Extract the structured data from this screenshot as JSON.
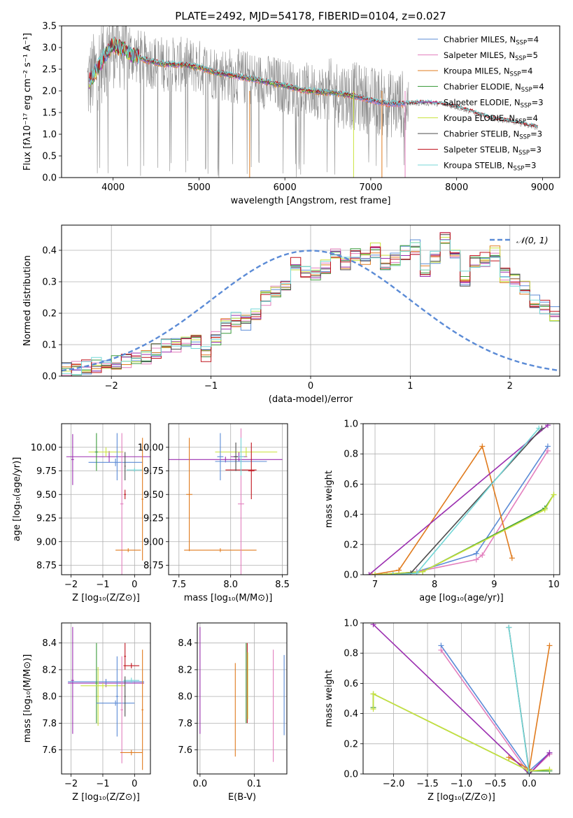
{
  "colors": {
    "chabrier_miles": "#5b8bd6",
    "salpeter_miles": "#e37fbe",
    "kroupa_miles": "#e07b1e",
    "chabrier_elodie": "#3c9b3c",
    "salpeter_elodie": "#9b2fb0",
    "kroupa_elodie": "#c9e23d",
    "chabrier_stelib": "#4d4d4d",
    "salpeter_stelib": "#c0141e",
    "kroupa_stelib": "#74d7d7",
    "observed": "#8c8c8c",
    "normal": "#5b8bd6"
  },
  "chart_data": [
    {
      "id": "spectrum",
      "type": "line",
      "title": "PLATE=2492, MJD=54178, FIBERID=0104, z=0.027",
      "xlabel": "wavelength [Angstrom, rest frame]",
      "ylabel": "Flux [fλ10⁻¹⁷ erg cm⁻² s⁻¹ A⁻¹]",
      "xlim": [
        3400,
        9200
      ],
      "ylim": [
        0,
        3.5
      ],
      "xticks": [
        4000,
        5000,
        6000,
        7000,
        8000,
        9000
      ],
      "yticks": [
        0.0,
        0.5,
        1.0,
        1.5,
        2.0,
        2.5,
        3.0,
        3.5
      ],
      "legend_position": "top-right",
      "legend": [
        {
          "label": "Chabrier MILES, N",
          "sub": "SSP",
          "suffix": "=4",
          "color_key": "chabrier_miles"
        },
        {
          "label": "Salpeter MILES, N",
          "sub": "SSP",
          "suffix": "=5",
          "color_key": "salpeter_miles"
        },
        {
          "label": "Kroupa MILES, N",
          "sub": "SSP",
          "suffix": "=4",
          "color_key": "kroupa_miles"
        },
        {
          "label": "Chabrier ELODIE, N",
          "sub": "SSP",
          "suffix": "=4",
          "color_key": "chabrier_elodie"
        },
        {
          "label": "Salpeter ELODIE, N",
          "sub": "SSP",
          "suffix": "=3",
          "color_key": "salpeter_elodie"
        },
        {
          "label": "Kroupa ELODIE, N",
          "sub": "SSP",
          "suffix": "=4",
          "color_key": "kroupa_elodie"
        },
        {
          "label": "Chabrier STELIB, N",
          "sub": "SSP",
          "suffix": "=3",
          "color_key": "chabrier_stelib"
        },
        {
          "label": "Salpeter STELIB, N",
          "sub": "SSP",
          "suffix": "=3",
          "color_key": "salpeter_stelib"
        },
        {
          "label": "Kroupa STELIB, N",
          "sub": "SSP",
          "suffix": "=3",
          "color_key": "kroupa_stelib"
        }
      ],
      "model_continuum": {
        "x": [
          3700,
          3800,
          3900,
          4000,
          4100,
          4200,
          4400,
          4600,
          4800,
          5000,
          5200,
          5400,
          5600,
          5800,
          6000,
          6200,
          6400,
          6600,
          6800,
          7000,
          7200,
          7400,
          7600,
          7800,
          8000,
          8200,
          8400,
          8600,
          8800,
          8950
        ],
        "y": [
          2.15,
          2.45,
          2.8,
          3.05,
          3.0,
          2.85,
          2.7,
          2.62,
          2.6,
          2.55,
          2.42,
          2.35,
          2.28,
          2.2,
          2.12,
          2.02,
          1.98,
          1.95,
          1.88,
          1.78,
          1.7,
          1.7,
          1.72,
          1.7,
          1.62,
          1.5,
          1.36,
          1.3,
          1.22,
          1.15
        ]
      }
    },
    {
      "id": "residual-histogram",
      "type": "bar",
      "xlabel": "(data-model)/error",
      "ylabel": "Normed distribution",
      "xlim": [
        -2.5,
        2.5
      ],
      "ylim": [
        0,
        0.48
      ],
      "xticks": [
        -2,
        -1,
        0,
        1,
        2
      ],
      "yticks": [
        0.0,
        0.1,
        0.2,
        0.3,
        0.4
      ],
      "legend": [
        {
          "label": "𝒩(0, 1)",
          "color_key": "normal",
          "style": "dashed"
        }
      ],
      "bin_width": 0.1,
      "bin_start": -2.5,
      "base_values": [
        0.02,
        0.025,
        0.03,
        0.035,
        0.03,
        0.045,
        0.05,
        0.055,
        0.06,
        0.08,
        0.095,
        0.1,
        0.105,
        0.11,
        0.07,
        0.12,
        0.16,
        0.18,
        0.17,
        0.2,
        0.25,
        0.27,
        0.28,
        0.36,
        0.33,
        0.33,
        0.35,
        0.38,
        0.36,
        0.39,
        0.37,
        0.4,
        0.36,
        0.37,
        0.39,
        0.41,
        0.34,
        0.38,
        0.44,
        0.4,
        0.31,
        0.36,
        0.37,
        0.39,
        0.32,
        0.3,
        0.28,
        0.24,
        0.22,
        0.2
      ]
    },
    {
      "id": "age-vs-Z",
      "type": "scatter",
      "xlabel": "Z [log₁₀(Z/Z⊙)]",
      "ylabel": "age  [log₁₀(age/yr)]",
      "xlim": [
        -2.3,
        0.5
      ],
      "ylim": [
        8.65,
        10.25
      ],
      "xticks": [
        -2,
        -1,
        0
      ],
      "yticks": [
        8.75,
        9.0,
        9.25,
        9.5,
        9.75,
        10.0
      ],
      "points": [
        {
          "color_key": "salpeter_elodie",
          "x": -0.8,
          "xerr": 1.35,
          "y": 9.9,
          "yerr": 0.06
        },
        {
          "color_key": "salpeter_elodie",
          "x": -1.95,
          "xerr": 0.04,
          "y": 9.87,
          "yerr": 0.27
        },
        {
          "color_key": "chabrier_miles",
          "x": -0.6,
          "xerr": 0.85,
          "y": 9.84,
          "yerr": 0.04
        },
        {
          "color_key": "kroupa_elodie",
          "x": -0.9,
          "xerr": 0.55,
          "y": 9.95,
          "yerr": 0.05
        },
        {
          "color_key": "chabrier_elodie",
          "x": -1.2,
          "xerr": 0.05,
          "y": 9.95,
          "yerr": 0.2
        },
        {
          "color_key": "kroupa_stelib",
          "x": 0.0,
          "xerr": 0.25,
          "y": 9.76,
          "yerr": 0.02
        },
        {
          "color_key": "salpeter_stelib",
          "x": -0.3,
          "xerr": 0.03,
          "y": 9.5,
          "yerr": 0.05
        },
        {
          "color_key": "salpeter_miles",
          "x": -0.4,
          "xerr": 0.05,
          "y": 9.4,
          "yerr": 0.75
        },
        {
          "color_key": "kroupa_miles",
          "x": -0.2,
          "xerr": 0.4,
          "y": 8.91,
          "yerr": 0.02
        },
        {
          "color_key": "kroupa_miles",
          "x": 0.25,
          "xerr": 0.03,
          "y": 9.45,
          "yerr": 0.65
        },
        {
          "color_key": "chabrier_miles",
          "x": -0.55,
          "xerr": 0.04,
          "y": 9.9,
          "yerr": 0.25
        },
        {
          "color_key": "chabrier_stelib",
          "x": -0.3,
          "xerr": 0.02,
          "y": 9.8,
          "yerr": 0.15
        }
      ]
    },
    {
      "id": "age-vs-mass",
      "type": "scatter",
      "xlabel": "mass [log₁₀(M/M⊙)]",
      "ylabel": "",
      "xlim": [
        7.4,
        8.55
      ],
      "ylim": [
        8.65,
        10.25
      ],
      "xticks": [
        7.5,
        8.0,
        8.5
      ],
      "yticks": [
        8.75,
        9.0,
        9.25,
        9.5,
        9.75,
        10.0
      ],
      "points": [
        {
          "color_key": "salpeter_elodie",
          "x": 7.95,
          "xerr": 0.55,
          "y": 9.87,
          "yerr": 0.03
        },
        {
          "color_key": "salpeter_elodie",
          "x": 8.08,
          "xerr": 0.08,
          "y": 9.9,
          "yerr": 0.05
        },
        {
          "color_key": "kroupa_elodie",
          "x": 8.15,
          "xerr": 0.3,
          "y": 9.95,
          "yerr": 0.05
        },
        {
          "color_key": "chabrier_miles",
          "x": 8.1,
          "xerr": 0.25,
          "y": 9.85,
          "yerr": 0.03
        },
        {
          "color_key": "chabrier_miles",
          "x": 7.9,
          "xerr": 0.03,
          "y": 9.9,
          "yerr": 0.25
        },
        {
          "color_key": "kroupa_miles",
          "x": 7.6,
          "xerr": 0.03,
          "y": 9.5,
          "yerr": 0.6
        },
        {
          "color_key": "kroupa_miles",
          "x": 7.9,
          "xerr": 0.35,
          "y": 8.91,
          "yerr": 0.02
        },
        {
          "color_key": "salpeter_stelib",
          "x": 8.2,
          "xerr": 0.03,
          "y": 9.75,
          "yerr": 0.3
        },
        {
          "color_key": "salpeter_stelib",
          "x": 8.1,
          "xerr": 0.15,
          "y": 9.76,
          "yerr": 0.02
        },
        {
          "color_key": "salpeter_miles",
          "x": 8.1,
          "xerr": 0.03,
          "y": 9.4,
          "yerr": 0.8
        },
        {
          "color_key": "kroupa_stelib",
          "x": 8.1,
          "xerr": 0.03,
          "y": 9.9,
          "yerr": 0.2
        },
        {
          "color_key": "chabrier_stelib",
          "x": 8.05,
          "xerr": 0.02,
          "y": 9.9,
          "yerr": 0.15
        }
      ]
    },
    {
      "id": "mass-weight-vs-age",
      "type": "line",
      "xlabel": "age  [log₁₀(age/yr)]",
      "ylabel": "mass weight",
      "xlim": [
        6.8,
        10.1
      ],
      "ylim": [
        0,
        1
      ],
      "xticks": [
        7,
        8,
        9,
        10
      ],
      "yticks": [
        0.0,
        0.2,
        0.4,
        0.6,
        0.8,
        1.0
      ],
      "series": [
        {
          "color_key": "chabrier_miles",
          "x": [
            7.3,
            7.7,
            8.7,
            9.9
          ],
          "y": [
            0.0,
            0.02,
            0.14,
            0.85
          ]
        },
        {
          "color_key": "salpeter_miles",
          "x": [
            7.2,
            7.7,
            8.7,
            8.8,
            9.9
          ],
          "y": [
            0.0,
            0.02,
            0.1,
            0.13,
            0.82
          ]
        },
        {
          "color_key": "kroupa_miles",
          "x": [
            6.95,
            7.4,
            8.8,
            9.3
          ],
          "y": [
            0.0,
            0.03,
            0.85,
            0.11
          ]
        },
        {
          "color_key": "chabrier_elodie",
          "x": [
            7.0,
            7.8,
            9.85,
            10.0
          ],
          "y": [
            0.0,
            0.02,
            0.44,
            0.53
          ]
        },
        {
          "color_key": "salpeter_elodie",
          "x": [
            6.9,
            9.9
          ],
          "y": [
            0.0,
            0.99
          ]
        },
        {
          "color_key": "kroupa_elodie",
          "x": [
            7.0,
            7.8,
            9.85,
            10.0
          ],
          "y": [
            0.0,
            0.02,
            0.43,
            0.53
          ]
        },
        {
          "color_key": "chabrier_stelib",
          "x": [
            7.3,
            7.6,
            9.8
          ],
          "y": [
            0.0,
            0.01,
            0.97
          ]
        },
        {
          "color_key": "kroupa_stelib",
          "x": [
            7.3,
            7.7,
            9.75
          ],
          "y": [
            0.0,
            0.01,
            0.97
          ]
        }
      ]
    },
    {
      "id": "mass-vs-Z",
      "type": "scatter",
      "xlabel": "Z [log₁₀(Z/Z⊙)]",
      "ylabel": "mass [log₁₀(M/M⊙)]",
      "xlim": [
        -2.3,
        0.5
      ],
      "ylim": [
        7.42,
        8.55
      ],
      "xticks": [
        -2,
        -1,
        0
      ],
      "yticks": [
        7.6,
        7.8,
        8.0,
        8.2,
        8.4
      ],
      "points": [
        {
          "color_key": "salpeter_elodie",
          "x": -1.95,
          "xerr": 0.04,
          "y": 8.12,
          "yerr": 0.4
        },
        {
          "color_key": "salpeter_elodie",
          "x": -0.9,
          "xerr": 1.2,
          "y": 8.1,
          "yerr": 0.03
        },
        {
          "color_key": "chabrier_miles",
          "x": -0.9,
          "xerr": 1.2,
          "y": 8.11,
          "yerr": 0.02
        },
        {
          "color_key": "chabrier_elodie",
          "x": -1.2,
          "xerr": 0.04,
          "y": 8.1,
          "yerr": 0.3
        },
        {
          "color_key": "kroupa_elodie",
          "x": -1.0,
          "xerr": 0.7,
          "y": 8.08,
          "yerr": 0.02
        },
        {
          "color_key": "kroupa_elodie",
          "x": -1.15,
          "xerr": 0.03,
          "y": 8.0,
          "yerr": 0.22
        },
        {
          "color_key": "chabrier_miles",
          "x": -0.6,
          "xerr": 0.6,
          "y": 7.95,
          "yerr": 0.02
        },
        {
          "color_key": "chabrier_miles",
          "x": -0.55,
          "xerr": 0.04,
          "y": 8.0,
          "yerr": 0.3
        },
        {
          "color_key": "salpeter_miles",
          "x": -0.4,
          "xerr": 0.04,
          "y": 7.9,
          "yerr": 0.4
        },
        {
          "color_key": "kroupa_miles",
          "x": -0.1,
          "xerr": 0.35,
          "y": 7.58,
          "yerr": 0.02
        },
        {
          "color_key": "kroupa_miles",
          "x": 0.25,
          "xerr": 0.03,
          "y": 7.9,
          "yerr": 0.45
        },
        {
          "color_key": "salpeter_stelib",
          "x": -0.3,
          "xerr": 0.03,
          "y": 8.3,
          "yerr": 0.1
        },
        {
          "color_key": "salpeter_stelib",
          "x": -0.1,
          "xerr": 0.25,
          "y": 8.23,
          "yerr": 0.02
        },
        {
          "color_key": "kroupa_stelib",
          "x": -0.1,
          "xerr": 0.25,
          "y": 8.12,
          "yerr": 0.02
        },
        {
          "color_key": "chabrier_stelib",
          "x": -0.3,
          "xerr": 0.02,
          "y": 8.0,
          "yerr": 0.15
        }
      ]
    },
    {
      "id": "mass-vs-ebv",
      "type": "scatter",
      "xlabel": "E(B-V)",
      "ylabel": "",
      "xlim": [
        -0.005,
        0.16
      ],
      "ylim": [
        7.42,
        8.55
      ],
      "xticks": [
        0.0,
        0.1
      ],
      "yticks": [
        7.6,
        7.8,
        8.0,
        8.2,
        8.4
      ],
      "points": [
        {
          "color_key": "salpeter_elodie",
          "x": 0.0,
          "xerr": 0.0,
          "y": 8.12,
          "yerr": 0.4
        },
        {
          "color_key": "kroupa_miles",
          "x": 0.065,
          "xerr": 0.0,
          "y": 7.9,
          "yerr": 0.35
        },
        {
          "color_key": "chabrier_elodie",
          "x": 0.085,
          "xerr": 0.0,
          "y": 8.1,
          "yerr": 0.3
        },
        {
          "color_key": "salpeter_stelib",
          "x": 0.087,
          "xerr": 0.0,
          "y": 8.1,
          "yerr": 0.3
        },
        {
          "color_key": "kroupa_elodie",
          "x": 0.088,
          "xerr": 0.0,
          "y": 8.08,
          "yerr": 0.25
        },
        {
          "color_key": "salpeter_miles",
          "x": 0.135,
          "xerr": 0.0,
          "y": 7.93,
          "yerr": 0.42
        },
        {
          "color_key": "chabrier_miles",
          "x": 0.155,
          "xerr": 0.0,
          "y": 8.01,
          "yerr": 0.3
        }
      ]
    },
    {
      "id": "mass-weight-vs-Z",
      "type": "line",
      "xlabel": "Z [log₁₀(Z/Z⊙)]",
      "ylabel": "mass weight",
      "xlim": [
        -2.45,
        0.45
      ],
      "ylim": [
        0,
        1
      ],
      "xticks": [
        -2.0,
        -1.5,
        -1.0,
        -0.5,
        0.0
      ],
      "yticks": [
        0.0,
        0.2,
        0.4,
        0.6,
        0.8,
        1.0
      ],
      "series": [
        {
          "color_key": "chabrier_miles",
          "x": [
            -1.3,
            0.0,
            0.3
          ],
          "y": [
            0.85,
            0.02,
            0.14
          ]
        },
        {
          "color_key": "salpeter_miles",
          "x": [
            -1.3,
            0.0,
            0.3
          ],
          "y": [
            0.82,
            0.0,
            0.13
          ]
        },
        {
          "color_key": "kroupa_miles",
          "x": [
            -0.3,
            0.0,
            0.3
          ],
          "y": [
            0.11,
            0.03,
            0.85
          ]
        },
        {
          "color_key": "salpeter_elodie",
          "x": [
            -2.3,
            0.0,
            0.3
          ],
          "y": [
            0.99,
            0.0,
            0.14
          ]
        },
        {
          "color_key": "chabrier_elodie",
          "x": [
            -2.3,
            -2.3,
            0.0,
            0.3
          ],
          "y": [
            0.44,
            0.53,
            0.02,
            0.02
          ]
        },
        {
          "color_key": "kroupa_elodie",
          "x": [
            -2.3,
            -2.3,
            0.0,
            0.3
          ],
          "y": [
            0.43,
            0.53,
            0.02,
            0.03
          ]
        },
        {
          "color_key": "chabrier_stelib",
          "x": [
            -0.3,
            0.0
          ],
          "y": [
            0.97,
            0.01
          ]
        },
        {
          "color_key": "kroupa_stelib",
          "x": [
            -0.3,
            0.0
          ],
          "y": [
            0.97,
            0.0
          ]
        }
      ]
    }
  ]
}
